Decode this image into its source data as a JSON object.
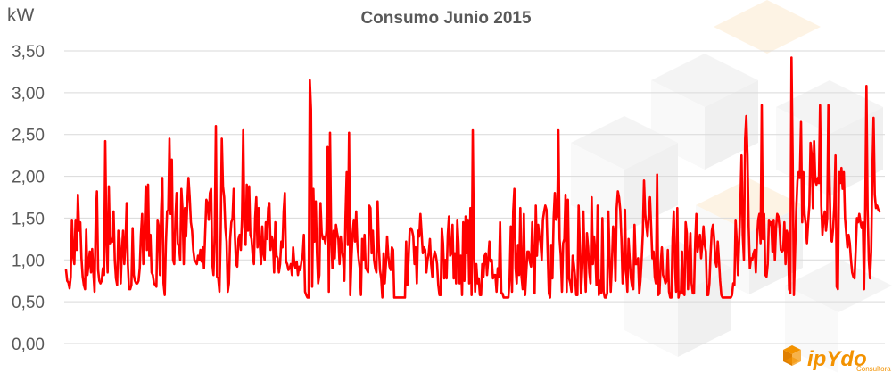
{
  "chart_data": {
    "type": "line",
    "title": "Consumo Junio 2015",
    "ylabel": "kW",
    "xlabel": "",
    "ylim": [
      0,
      3.5
    ],
    "yticks": [
      "0,00",
      "0,50",
      "1,00",
      "1,50",
      "2,00",
      "2,50",
      "3,00",
      "3,50"
    ],
    "grid": true,
    "legend": "none",
    "line_color": "#ff0000",
    "series": [
      {
        "values": [
          0.88,
          0.75,
          0.73,
          0.66,
          0.8,
          1.48,
          1.05,
          0.95,
          1.48,
          1.12,
          1.78,
          1.35,
          1.45,
          1.02,
          0.8,
          0.7,
          0.65,
          1.36,
          0.82,
          0.95,
          1.1,
          0.85,
          1.13,
          0.85,
          0.62,
          1.5,
          1.82,
          0.88,
          0.75,
          0.72,
          0.75,
          0.9,
          0.82,
          2.42,
          1.25,
          0.85,
          1.88,
          1.2,
          1.25,
          1.22,
          1.58,
          1.0,
          0.78,
          0.7,
          1.35,
          1.25,
          0.72,
          1.1,
          1.35,
          0.95,
          1.2,
          1.68,
          0.95,
          0.65,
          0.65,
          0.7,
          1.38,
          0.82,
          0.75,
          0.72,
          0.72,
          0.75,
          0.9,
          1.3,
          1.55,
          0.95,
          1.3,
          1.88,
          1.12,
          1.9,
          1.05,
          1.3,
          0.85,
          0.82,
          0.72,
          0.7,
          0.68,
          1.48,
          1.4,
          0.82,
          1.58,
          1.98,
          0.72,
          0.58,
          1.2,
          1.58,
          1.6,
          2.45,
          1.55,
          2.2,
          1.0,
          0.95,
          1.5,
          1.8,
          1.2,
          1.15,
          1.0,
          1.85,
          1.6,
          0.95,
          1.62,
          1.28,
          1.68,
          1.98,
          1.75,
          1.45,
          1.35,
          1.12,
          1.0,
          0.98,
          0.95,
          1.05,
          1.0,
          1.12,
          0.98,
          1.15,
          0.9,
          1.32,
          1.72,
          1.68,
          1.48,
          1.8,
          1.85,
          0.95,
          0.82,
          1.3,
          2.6,
          0.8,
          0.78,
          0.62,
          1.25,
          2.45,
          1.88,
          1.75,
          1.38,
          1.22,
          0.62,
          0.72,
          1.25,
          1.45,
          1.5,
          1.85,
          1.3,
          0.95,
          0.92,
          1.25,
          1.3,
          1.12,
          1.5,
          2.55,
          1.4,
          1.18,
          1.9,
          1.35,
          1.88,
          1.3,
          1.25,
          1.05,
          0.95,
          1.5,
          1.75,
          1.15,
          1.62,
          1.18,
          0.95,
          1.4,
          1.08,
          1.0,
          1.45,
          1.25,
          1.62,
          1.68,
          1.12,
          1.28,
          1.22,
          0.85,
          1.45,
          1.05,
          1.02,
          0.85,
          0.95,
          1.22,
          1.15,
          1.58,
          1.8,
          0.98,
          0.95,
          0.88,
          0.9,
          0.95,
          0.82,
          1.15,
          0.95,
          0.9,
          0.98,
          0.82,
          0.92,
          0.88,
          0.98,
          1.05,
          1.3,
          0.62,
          0.58,
          0.55,
          0.55,
          3.15,
          2.8,
          0.68,
          1.85,
          1.22,
          1.7,
          1.08,
          0.72,
          0.82,
          1.68,
          1.32,
          1.25,
          1.28,
          1.2,
          1.35,
          2.35,
          0.62,
          2.52,
          1.28,
          0.9,
          1.35,
          1.02,
          1.42,
          1.32,
          1.25,
          0.95,
          1.28,
          1.12,
          1.02,
          0.75,
          1.52,
          2.05,
          1.18,
          2.52,
          0.58,
          1.0,
          1.32,
          1.48,
          1.22,
          1.58,
          1.18,
          1.02,
          0.9,
          0.58,
          1.25,
          1.0,
          1.3,
          0.9,
          0.88,
          0.85,
          1.65,
          1.62,
          1.08,
          1.35,
          1.0,
          0.9,
          0.85,
          1.7,
          1.18,
          0.88,
          0.78,
          0.55,
          1.08,
          0.72,
          0.95,
          1.28,
          1.05,
          0.92,
          0.88,
          1.15,
          1.12,
          0.55,
          0.55,
          0.55,
          0.55,
          0.55,
          0.55,
          0.55,
          0.55,
          0.55,
          0.55,
          1.22,
          0.7,
          1.0,
          1.35,
          1.38,
          1.35,
          1.28,
          0.95,
          1.15,
          0.72,
          1.35,
          1.28,
          1.55,
          1.32,
          1.08,
          1.15,
          1.12,
          0.85,
          1.0,
          1.08,
          1.25,
          0.95,
          0.8,
          1.02,
          1.1,
          1.05,
          0.95,
          0.7,
          0.58,
          0.58,
          1.38,
          1.2,
          0.78,
          1.0,
          0.78,
          1.3,
          1.52,
          1.05,
          1.08,
          1.42,
          0.78,
          1.08,
          0.72,
          1.48,
          1.2,
          0.72,
          1.05,
          0.58,
          1.45,
          0.75,
          1.52,
          1.08,
          1.48,
          0.72,
          1.62,
          0.58,
          2.55,
          1.1,
          0.62,
          0.95,
          0.72,
          0.78,
          0.58,
          0.58,
          0.95,
          0.8,
          1.05,
          1.08,
          0.82,
          1.0,
          1.22,
          0.98,
          1.0,
          0.78,
          0.82,
          0.82,
          0.62,
          0.9,
          0.8,
          1.45,
          0.6,
          0.6,
          0.55,
          0.55,
          0.55,
          0.55,
          0.55,
          0.78,
          1.4,
          0.62,
          1.58,
          1.85,
          0.9,
          0.72,
          1.18,
          0.82,
          1.62,
          0.8,
          0.65,
          1.55,
          0.58,
          0.85,
          1.1,
          1.1,
          0.98,
          0.92,
          1.45,
          0.98,
          0.6,
          1.65,
          1.05,
          1.42,
          1.28,
          1.2,
          1.0,
          1.48,
          1.58,
          1.65,
          1.6,
          1.08,
          0.6,
          0.55,
          1.18,
          0.78,
          1.5,
          1.8,
          1.48,
          1.52,
          2.55,
          1.25,
          1.05,
          0.62,
          1.2,
          1.25,
          1.78,
          0.62,
          1.72,
          0.78,
          0.72,
          0.62,
          1.05,
          0.95,
          0.8,
          0.58,
          0.58,
          1.65,
          1.2,
          0.6,
          0.9,
          1.58,
          0.98,
          0.62,
          1.32,
          1.15,
          0.85,
          0.72,
          1.75,
          0.95,
          1.28,
          1.1,
          0.7,
          1.65,
          0.58,
          0.75,
          0.6,
          1.5,
          0.62,
          0.55,
          0.55,
          0.6,
          1.58,
          1.05,
          0.62,
          0.95,
          1.4,
          1.28,
          0.75,
          1.62,
          1.82,
          1.75,
          1.6,
          1.25,
          0.72,
          0.88,
          1.6,
          0.85,
          0.62,
          1.25,
          1.0,
          0.78,
          0.68,
          0.65,
          1.42,
          0.95,
          0.95,
          1.02,
          0.6,
          0.75,
          1.0,
          1.32,
          1.95,
          1.55,
          1.4,
          1.28,
          1.55,
          1.75,
          1.4,
          1.02,
          1.1,
          0.8,
          0.72,
          2.02,
          0.58,
          0.6,
          0.95,
          1.15,
          0.82,
          0.78,
          0.72,
          0.75,
          1.12,
          0.62,
          0.55,
          0.55,
          1.25,
          1.58,
          0.92,
          0.62,
          1.62,
          0.55,
          0.62,
          0.6,
          1.1,
          0.6,
          0.58,
          1.45,
          1.32,
          0.65,
          1.02,
          1.32,
          0.72,
          0.6,
          0.6,
          1.2,
          1.55,
          1.1,
          1.2,
          1.3,
          1.02,
          1.18,
          1.4,
          1.18,
          1.1,
          0.58,
          0.58,
          0.72,
          1.08,
          1.35,
          1.42,
          1.25,
          0.98,
          0.92,
          1.22,
          1.0,
          0.75,
          0.58,
          0.55,
          0.55,
          0.55,
          0.55,
          0.55,
          0.55,
          0.55,
          0.55,
          0.58,
          0.72,
          0.7,
          1.48,
          1.22,
          0.82,
          1.22,
          1.65,
          2.25,
          1.3,
          1.0,
          2.45,
          2.72,
          2.25,
          1.4,
          0.9,
          1.02,
          1.0,
          1.08,
          1.12,
          0.85,
          1.25,
          1.48,
          1.55,
          1.2,
          2.85,
          1.25,
          1.55,
          0.82,
          0.8,
          0.95,
          1.48,
          1.42,
          1.45,
          1.1,
          1.48,
          1.0,
          1.38,
          1.55,
          1.52,
          1.38,
          1.12,
          1.1,
          1.12,
          1.45,
          0.95,
          1.35,
          1.3,
          0.65,
          0.6,
          3.42,
          2.2,
          0.58,
          1.1,
          1.6,
          1.95,
          2.05,
          1.98,
          2.65,
          1.45,
          2.05,
          1.55,
          1.42,
          1.2,
          1.45,
          1.65,
          2.4,
          2.25,
          1.62,
          2.42,
          1.95,
          1.9,
          1.98,
          1.92,
          2.85,
          1.65,
          1.3,
          1.5,
          1.58,
          1.35,
          1.5,
          2.85,
          1.95,
          1.25,
          1.22,
          1.38,
          1.65,
          2.25,
          0.68,
          0.65,
          2.05,
          1.92,
          2.1,
          1.85,
          2.05,
          1.5,
          1.32,
          1.15,
          1.3,
          1.2,
          1.0,
          0.85,
          0.8,
          0.78,
          1.12,
          1.5,
          1.45,
          1.55,
          1.45,
          1.38,
          1.45,
          0.65,
          1.62,
          3.08,
          1.6,
          1.0,
          0.78,
          1.1,
          2.05,
          2.7,
          1.78,
          1.62,
          1.65,
          1.6,
          1.58
        ]
      }
    ]
  },
  "logo": {
    "name": "ipYdo",
    "tagline": "Consultora",
    "color": "#f39200"
  }
}
